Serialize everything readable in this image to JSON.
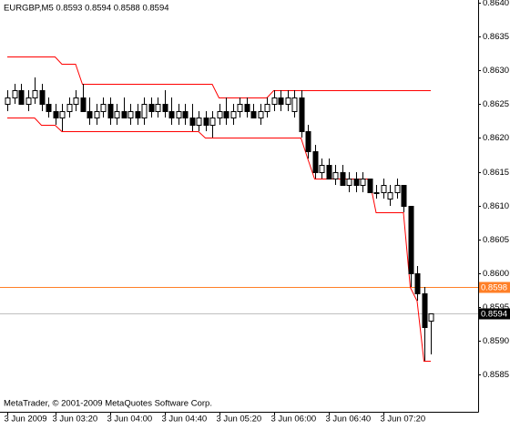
{
  "chart_data": {
    "type": "candlestick",
    "header": "EURGBP,M5  0.8593 0.8594 0.8588 0.8594",
    "footer": "MetaTrader, © 2001-2009 MetaQuotes Software Corp.",
    "categories": [
      "3 Jun 2009",
      null,
      null,
      null,
      null,
      null,
      null,
      "3 Jun 03:20",
      null,
      null,
      null,
      null,
      null,
      null,
      null,
      "3 Jun 04:00",
      null,
      null,
      null,
      null,
      null,
      null,
      null,
      "3 Jun 04:40",
      null,
      null,
      null,
      null,
      null,
      null,
      null,
      "3 Jun 05:20",
      null,
      null,
      null,
      null,
      null,
      null,
      null,
      "3 Jun 06:00",
      null,
      null,
      null,
      null,
      null,
      null,
      null,
      "3 Jun 06:40",
      null,
      null,
      null,
      null,
      null,
      null,
      null,
      "3 Jun 07:20",
      null,
      null,
      null,
      null,
      null,
      null,
      null
    ],
    "open": [
      0.8625,
      0.8626,
      0.8627,
      0.8625,
      0.8626,
      0.8627,
      0.8625,
      0.8624,
      0.8623,
      0.8624,
      0.8625,
      0.8626,
      0.8624,
      0.8623,
      0.8624,
      0.8625,
      0.8623,
      0.8624,
      0.8623,
      0.8624,
      0.8623,
      0.8625,
      0.8624,
      0.8625,
      0.8624,
      0.8623,
      0.8624,
      0.8623,
      0.8622,
      0.8623,
      0.8622,
      0.8623,
      0.8624,
      0.8623,
      0.8624,
      0.8625,
      0.8624,
      0.8623,
      0.8624,
      0.8625,
      0.8626,
      0.8625,
      0.8624,
      0.8626,
      0.8621,
      0.8618,
      0.8615,
      0.8616,
      0.8614,
      0.8615,
      0.8613,
      0.8614,
      0.8613,
      0.8614,
      0.8612,
      0.8612,
      0.8611,
      0.8612,
      0.8613,
      0.861,
      0.86,
      0.8597,
      0.8593
    ],
    "high": [
      0.8627,
      0.8628,
      0.8628,
      0.8627,
      0.8629,
      0.8628,
      0.8626,
      0.8625,
      0.8625,
      0.8626,
      0.8627,
      0.8628,
      0.8626,
      0.8625,
      0.8626,
      0.8626,
      0.8625,
      0.8626,
      0.8625,
      0.8625,
      0.8626,
      0.8626,
      0.8626,
      0.8627,
      0.8626,
      0.8625,
      0.8625,
      0.8625,
      0.8624,
      0.8624,
      0.8624,
      0.8625,
      0.8626,
      0.8625,
      0.8626,
      0.8626,
      0.8625,
      0.8625,
      0.8626,
      0.8627,
      0.8627,
      0.8627,
      0.8627,
      0.8627,
      0.8622,
      0.8619,
      0.8617,
      0.8617,
      0.8616,
      0.8616,
      0.8615,
      0.8615,
      0.8615,
      0.8614,
      0.8613,
      0.8614,
      0.8613,
      0.8614,
      0.8613,
      0.861,
      0.8601,
      0.8598,
      0.8594
    ],
    "low": [
      0.8624,
      0.8625,
      0.8625,
      0.8624,
      0.8625,
      0.8624,
      0.8623,
      0.8622,
      0.8621,
      0.8623,
      0.8624,
      0.8624,
      0.8622,
      0.8622,
      0.8623,
      0.8622,
      0.8622,
      0.8623,
      0.8622,
      0.8622,
      0.8622,
      0.8623,
      0.8623,
      0.8623,
      0.8622,
      0.8622,
      0.8622,
      0.8621,
      0.8621,
      0.8621,
      0.862,
      0.8622,
      0.8622,
      0.8622,
      0.8623,
      0.8623,
      0.8623,
      0.8622,
      0.8623,
      0.8624,
      0.8624,
      0.8624,
      0.8623,
      0.862,
      0.8617,
      0.8614,
      0.8614,
      0.8614,
      0.8613,
      0.8613,
      0.8612,
      0.8612,
      0.8612,
      0.8612,
      0.8611,
      0.8611,
      0.861,
      0.8611,
      0.8609,
      0.8598,
      0.8596,
      0.8587,
      0.8588
    ],
    "close": [
      0.8626,
      0.8627,
      0.8625,
      0.8626,
      0.8627,
      0.8625,
      0.8624,
      0.8623,
      0.8624,
      0.8625,
      0.8626,
      0.8624,
      0.8623,
      0.8624,
      0.8625,
      0.8623,
      0.8624,
      0.8623,
      0.8624,
      0.8623,
      0.8625,
      0.8624,
      0.8625,
      0.8624,
      0.8623,
      0.8624,
      0.8623,
      0.8622,
      0.8623,
      0.8622,
      0.8623,
      0.8624,
      0.8623,
      0.8624,
      0.8625,
      0.8624,
      0.8623,
      0.8624,
      0.8625,
      0.8626,
      0.8625,
      0.8626,
      0.8626,
      0.8621,
      0.8618,
      0.8615,
      0.8616,
      0.8614,
      0.8615,
      0.8613,
      0.8614,
      0.8613,
      0.8614,
      0.8612,
      0.8612,
      0.8613,
      0.8612,
      0.8613,
      0.861,
      0.86,
      0.8597,
      0.8592,
      0.8594
    ],
    "up_color": "#ffffff",
    "down_color": "#000000",
    "wick_color": "#000000",
    "lines": [
      {
        "color": "#ff0000",
        "values": [
          0.8632,
          0.8632,
          0.8632,
          0.8632,
          0.8632,
          0.8632,
          0.8632,
          0.8632,
          0.8631,
          0.8631,
          0.8631,
          0.8628,
          0.8628,
          0.8628,
          0.8628,
          0.8628,
          0.8628,
          0.8628,
          0.8628,
          0.8628,
          0.8628,
          0.8628,
          0.8628,
          0.8628,
          0.8628,
          0.8628,
          0.8628,
          0.8628,
          0.8628,
          0.8628,
          0.8628,
          0.8626,
          0.8626,
          0.8626,
          0.8626,
          0.8626,
          0.8626,
          0.8626,
          0.8626,
          0.8627,
          0.8627,
          0.8627,
          0.8627,
          0.8627,
          0.8627,
          0.8627,
          0.8627,
          0.8627,
          0.8627,
          0.8627,
          0.8627,
          0.8627,
          0.8627,
          0.8627,
          0.8627,
          0.8627,
          0.8627,
          0.8627,
          0.8627,
          0.8627,
          0.8627,
          0.8627,
          0.8627
        ]
      },
      {
        "color": "#ff0000",
        "values": [
          0.8623,
          0.8623,
          0.8623,
          0.8623,
          0.8623,
          0.8622,
          0.8622,
          0.8622,
          0.8621,
          0.8621,
          0.8621,
          0.8621,
          0.8621,
          0.8621,
          0.8621,
          0.8621,
          0.8621,
          0.8621,
          0.8621,
          0.8621,
          0.8621,
          0.8621,
          0.8621,
          0.8621,
          0.8621,
          0.8621,
          0.8621,
          0.8621,
          0.8621,
          0.862,
          0.862,
          0.862,
          0.862,
          0.862,
          0.862,
          0.862,
          0.862,
          0.862,
          0.862,
          0.862,
          0.862,
          0.862,
          0.862,
          0.862,
          0.8617,
          0.8614,
          0.8614,
          0.8614,
          0.8614,
          0.8614,
          0.8614,
          0.8614,
          0.8614,
          0.8614,
          0.8609,
          0.8609,
          0.8609,
          0.8609,
          0.8609,
          0.8598,
          0.8596,
          0.8587,
          0.8587
        ]
      }
    ],
    "price_lines": [
      {
        "value": 0.8598,
        "label": "0.8598",
        "color": "#ff7f27",
        "label_background": "#ff7f27",
        "label_color": "#ffffff"
      },
      {
        "value": 0.8594,
        "label": "0.8594",
        "color": "#c0c0c0",
        "label_background": "#000000",
        "label_color": "#ffffff"
      }
    ],
    "ylim": [
      0.85795,
      0.86404
    ],
    "yticks": [
      {
        "value": 0.864,
        "label": "0.8640"
      },
      0.8635,
      {
        "value": 0.863,
        "label": "0.8630"
      },
      0.8625,
      {
        "value": 0.862,
        "label": "0.8620"
      },
      0.8615,
      {
        "value": 0.861,
        "label": "0.8610"
      },
      0.8605,
      {
        "value": 0.86,
        "label": "0.8600"
      },
      0.8595,
      {
        "value": 0.859,
        "label": "0.8590"
      },
      0.8585
    ],
    "grid": false
  }
}
